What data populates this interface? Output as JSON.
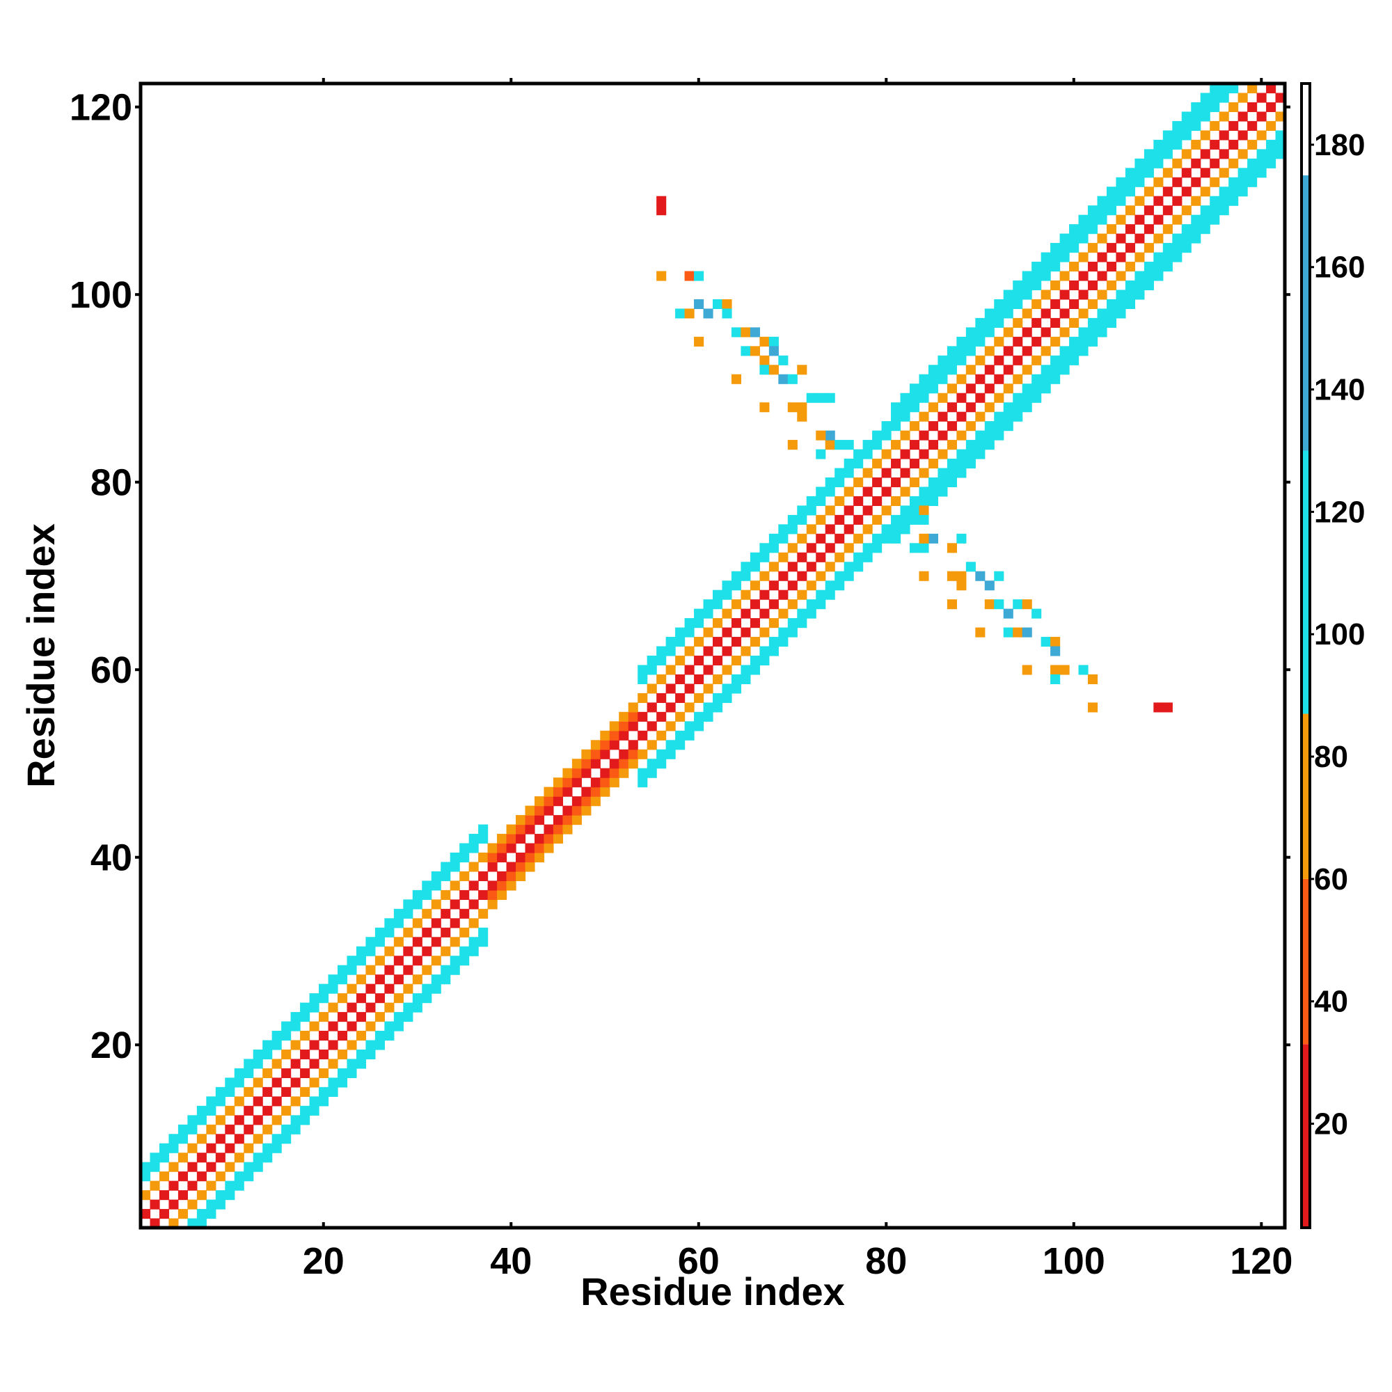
{
  "chart_data": {
    "type": "heatmap",
    "title": "",
    "xlabel": "Residue index",
    "ylabel": "Residue index",
    "xlim": [
      0.5,
      122.5
    ],
    "ylim": [
      0.5,
      122.5
    ],
    "xticks": [
      20,
      40,
      60,
      80,
      100,
      120
    ],
    "yticks": [
      20,
      40,
      60,
      80,
      100,
      120
    ],
    "grid": false,
    "colorbar": {
      "min": 3,
      "max": 190,
      "ticks": [
        20,
        40,
        60,
        80,
        100,
        120,
        140,
        160,
        180
      ],
      "bands": [
        {
          "from": 3,
          "to": 33,
          "color": "#e31a1c"
        },
        {
          "from": 33,
          "to": 60,
          "color": "#fb5a15"
        },
        {
          "from": 60,
          "to": 87,
          "color": "#f59a0a"
        },
        {
          "from": 87,
          "to": 130,
          "color": "#1ee0e8"
        },
        {
          "from": 130,
          "to": 175,
          "color": "#3fa9d6"
        },
        {
          "from": 175,
          "to": 190,
          "color": "#ffffff"
        }
      ]
    },
    "diagonal_structure": {
      "description_values_by_offset": "value encodes contact |i-j| pattern",
      "segments": [
        {
          "from": 1,
          "to": 37,
          "halfwidth": 6,
          "offset_colors": [
            3,
            20,
            50,
            75,
            100,
            120
          ]
        },
        {
          "from": 38,
          "to": 53,
          "halfwidth": 3,
          "offset_colors": [
            3,
            25,
            45,
            75
          ]
        },
        {
          "from": 54,
          "to": 80,
          "halfwidth": 6,
          "offset_colors": [
            3,
            20,
            50,
            75,
            100,
            120
          ]
        },
        {
          "from": 81,
          "to": 122,
          "halfwidth": 7,
          "offset_colors": [
            3,
            20,
            50,
            75,
            100,
            120,
            110
          ]
        }
      ]
    },
    "offdiagonal_points": [
      [
        56,
        110,
        20
      ],
      [
        56,
        109,
        20
      ],
      [
        56,
        102,
        75
      ],
      [
        59,
        102,
        45
      ],
      [
        60,
        102,
        110
      ],
      [
        58,
        98,
        110
      ],
      [
        59,
        98,
        75
      ],
      [
        60,
        99,
        140
      ],
      [
        61,
        98,
        140
      ],
      [
        62,
        99,
        110
      ],
      [
        63,
        99,
        75
      ],
      [
        63,
        98,
        110
      ],
      [
        60,
        95,
        75
      ],
      [
        64,
        96,
        110
      ],
      [
        65,
        96,
        75
      ],
      [
        66,
        96,
        140
      ],
      [
        67,
        95,
        75
      ],
      [
        68,
        95,
        110
      ],
      [
        65,
        94,
        110
      ],
      [
        66,
        94,
        75
      ],
      [
        67,
        93,
        75
      ],
      [
        68,
        94,
        140
      ],
      [
        69,
        93,
        110
      ],
      [
        64,
        91,
        75
      ],
      [
        67,
        92,
        110
      ],
      [
        68,
        92,
        75
      ],
      [
        69,
        91,
        140
      ],
      [
        70,
        91,
        110
      ],
      [
        71,
        92,
        75
      ],
      [
        67,
        88,
        75
      ],
      [
        70,
        88,
        75
      ],
      [
        71,
        88,
        75
      ],
      [
        72,
        89,
        110
      ],
      [
        73,
        89,
        110
      ],
      [
        74,
        89,
        110
      ],
      [
        71,
        87,
        75
      ],
      [
        70,
        84,
        75
      ],
      [
        74,
        84,
        75
      ],
      [
        74,
        85,
        140
      ],
      [
        73,
        83,
        110
      ],
      [
        75,
        84,
        110
      ],
      [
        76,
        84,
        110
      ],
      [
        73,
        85,
        75
      ],
      [
        84,
        77,
        75
      ],
      [
        84,
        76,
        110
      ],
      [
        83,
        73,
        110
      ],
      [
        84,
        73,
        110
      ],
      [
        85,
        74,
        140
      ],
      [
        84,
        74,
        75
      ],
      [
        88,
        74,
        110
      ],
      [
        87,
        73,
        75
      ],
      [
        84,
        70,
        75
      ],
      [
        87,
        70,
        75
      ],
      [
        88,
        70,
        75
      ],
      [
        89,
        71,
        110
      ],
      [
        90,
        70,
        140
      ],
      [
        91,
        69,
        140
      ],
      [
        92,
        70,
        110
      ],
      [
        88,
        69,
        75
      ],
      [
        87,
        67,
        75
      ],
      [
        91,
        67,
        75
      ],
      [
        92,
        67,
        110
      ],
      [
        93,
        66,
        140
      ],
      [
        94,
        67,
        110
      ],
      [
        95,
        67,
        75
      ],
      [
        96,
        66,
        110
      ],
      [
        90,
        64,
        75
      ],
      [
        93,
        64,
        110
      ],
      [
        94,
        64,
        75
      ],
      [
        95,
        64,
        140
      ],
      [
        97,
        63,
        110
      ],
      [
        98,
        63,
        75
      ],
      [
        98,
        62,
        140
      ],
      [
        95,
        60,
        75
      ],
      [
        98,
        60,
        75
      ],
      [
        99,
        60,
        75
      ],
      [
        101,
        60,
        110
      ],
      [
        98,
        59,
        110
      ],
      [
        102,
        59,
        75
      ],
      [
        102,
        56,
        75
      ],
      [
        109,
        56,
        20
      ],
      [
        110,
        56,
        20
      ]
    ]
  }
}
